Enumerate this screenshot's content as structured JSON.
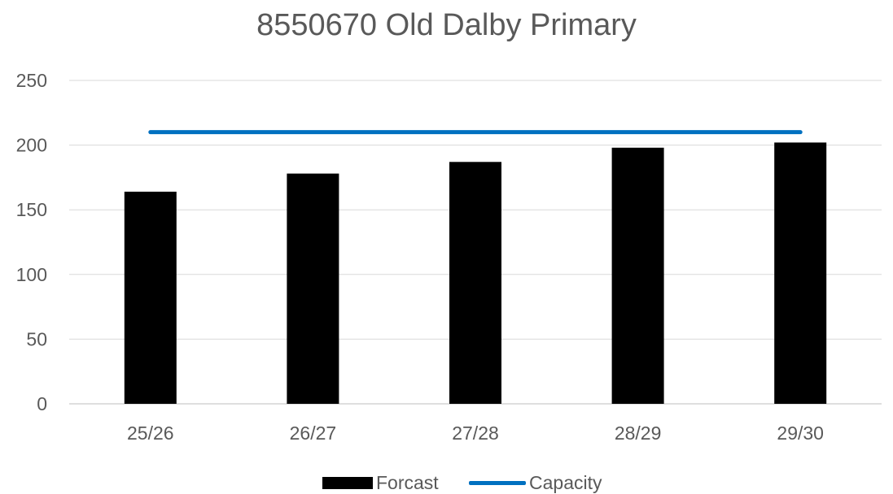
{
  "chart_data": {
    "type": "bar",
    "title": "8550670 Old Dalby Primary",
    "categories": [
      "25/26",
      "26/27",
      "27/28",
      "28/29",
      "29/30"
    ],
    "series": [
      {
        "name": "Forcast",
        "type": "bar",
        "color": "#000000",
        "values": [
          164,
          178,
          187,
          198,
          202
        ]
      },
      {
        "name": "Capacity",
        "type": "line",
        "color": "#0070C0",
        "values": [
          210,
          210,
          210,
          210,
          210
        ]
      }
    ],
    "xlabel": "",
    "ylabel": "",
    "ylim": [
      0,
      250
    ],
    "yticks": [
      0,
      50,
      100,
      150,
      200,
      250
    ],
    "grid": true,
    "legend": "bottom"
  }
}
